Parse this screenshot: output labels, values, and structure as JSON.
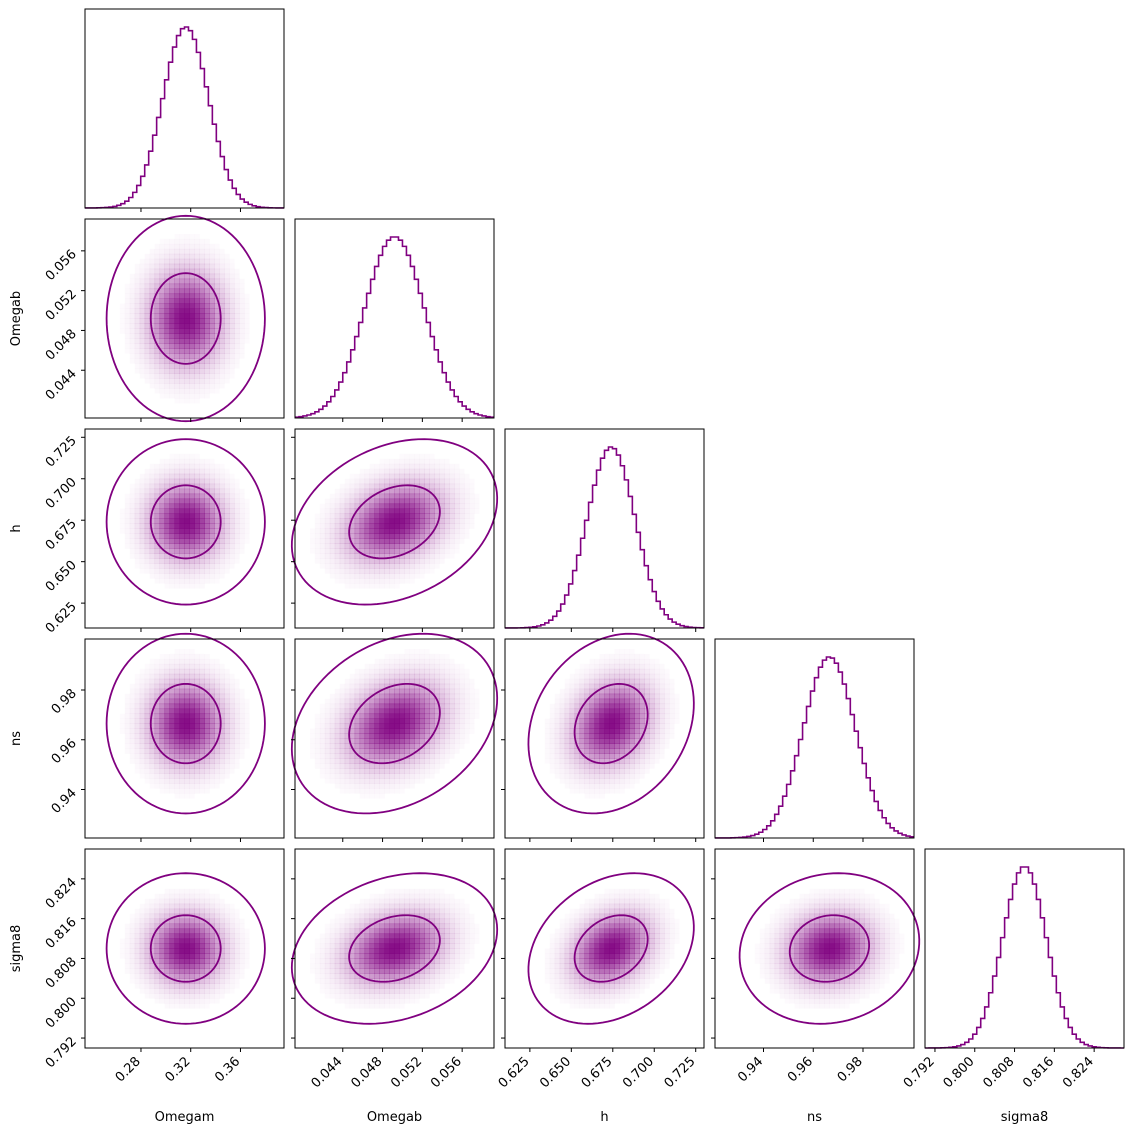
{
  "chart_data": {
    "type": "corner",
    "color": "#800080",
    "contour_levels": [
      "1-sigma",
      "2-sigma"
    ],
    "parameters": [
      {
        "name": "Omegam",
        "mean": 0.316,
        "sigma": 0.0185,
        "range": [
          0.235,
          0.395
        ],
        "ticks": [
          0.28,
          0.32,
          0.36
        ]
      },
      {
        "name": "Omegab",
        "mean": 0.0492,
        "sigma": 0.003,
        "range": [
          0.0392,
          0.0592
        ],
        "ticks": [
          0.044,
          0.048,
          0.052,
          0.056
        ]
      },
      {
        "name": "h",
        "mean": 0.674,
        "sigma": 0.0145,
        "range": [
          0.61,
          0.73
        ],
        "ticks": [
          0.625,
          0.65,
          0.675,
          0.7,
          0.725
        ]
      },
      {
        "name": "ns",
        "mean": 0.9665,
        "sigma": 0.0105,
        "range": [
          0.9205,
          1.0005
        ],
        "ticks": [
          0.94,
          0.96,
          0.98
        ]
      },
      {
        "name": "sigma8",
        "mean": 0.81,
        "sigma": 0.0044,
        "range": [
          0.79,
          0.83
        ],
        "ticks": [
          0.792,
          0.8,
          0.808,
          0.816,
          0.824
        ]
      }
    ],
    "correlations": [
      [
        1,
        0,
        0,
        0,
        0
      ],
      [
        0,
        1,
        0.28,
        0.28,
        0.25
      ],
      [
        0,
        0.28,
        1,
        0.22,
        0.28
      ],
      [
        0,
        0.28,
        0.22,
        1,
        0.1
      ],
      [
        0,
        0.25,
        0.28,
        0.1,
        1
      ]
    ],
    "tick_labels": {
      "Omegam": [
        "0.28",
        "0.32",
        "0.36"
      ],
      "Omegab": [
        "0.044",
        "0.048",
        "0.052",
        "0.056"
      ],
      "h": [
        "0.625",
        "0.650",
        "0.675",
        "0.700",
        "0.725"
      ],
      "ns": [
        "0.94",
        "0.96",
        "0.98"
      ],
      "sigma8": [
        "0.792",
        "0.800",
        "0.808",
        "0.816",
        "0.824"
      ]
    },
    "axis_labels": {
      "x": [
        "Omegam",
        "Omegab",
        "h",
        "ns",
        "sigma8"
      ],
      "y": [
        "Omegab",
        "h",
        "ns",
        "sigma8"
      ]
    }
  }
}
